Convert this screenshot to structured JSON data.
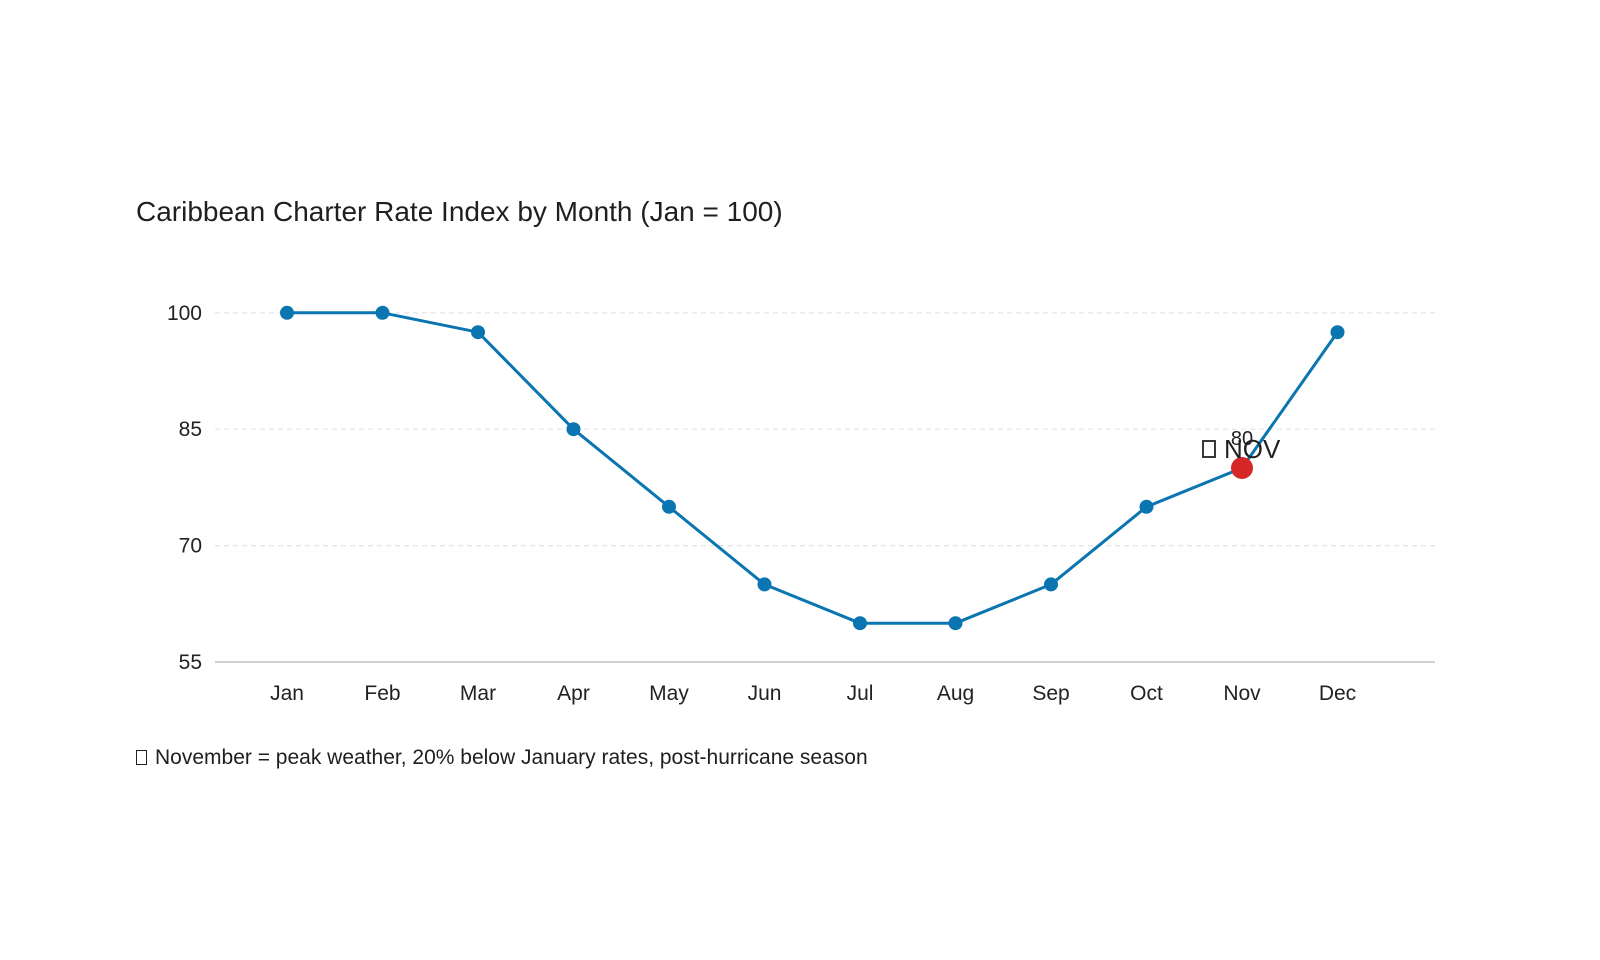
{
  "chart_data": {
    "type": "line",
    "title": "Caribbean Charter Rate Index by Month (Jan = 100)",
    "xlabel": "",
    "ylabel": "",
    "categories": [
      "Jan",
      "Feb",
      "Mar",
      "Apr",
      "May",
      "Jun",
      "Jul",
      "Aug",
      "Sep",
      "Oct",
      "Nov",
      "Dec"
    ],
    "series": [
      {
        "values": [
          100,
          100,
          97.5,
          85,
          75,
          65,
          60,
          60,
          65,
          75,
          80,
          97.5
        ]
      }
    ],
    "ylim": [
      55,
      105
    ],
    "yticks": [
      55,
      70,
      85,
      100
    ],
    "grid": "horizontal dashed",
    "legend": "none",
    "highlight": {
      "category": "Nov",
      "value": 80,
      "value_label": "80",
      "annotation": "NOV",
      "color": "#d62728"
    },
    "note": "November = peak weather, 20% below January rates, post-hurricane season",
    "colors": {
      "line": "#0a75b0",
      "highlight": "#d62728",
      "grid": "#e3e3e3",
      "axis": "#c0c0c0"
    }
  }
}
